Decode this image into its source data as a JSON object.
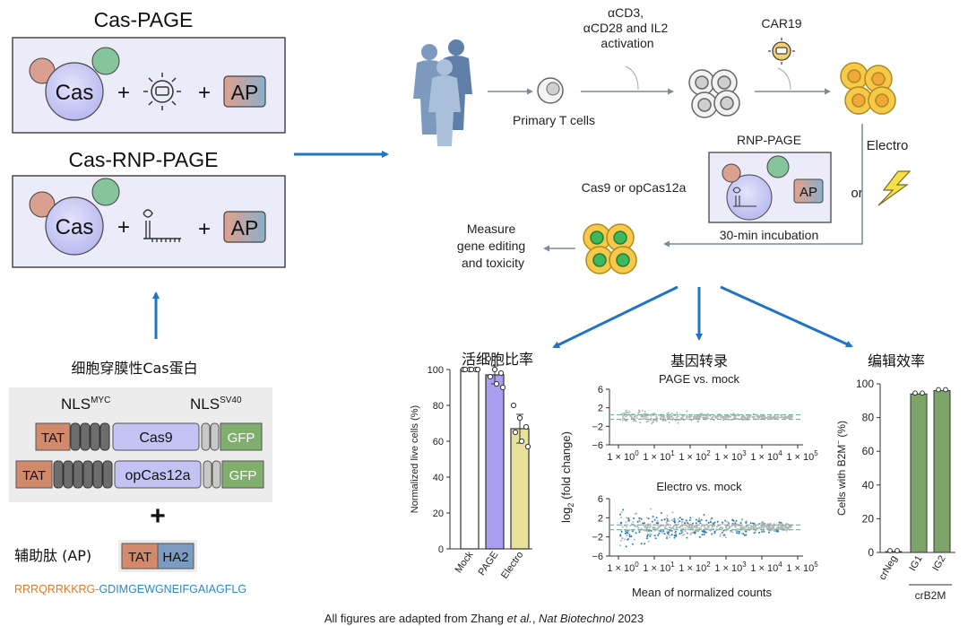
{
  "colors": {
    "box_fill": "#ecebfa",
    "box_stroke": "#4a4a4a",
    "cas_fill": "#c3c4f3",
    "blue_arrow": "#1f74c4",
    "tat_fill": "#d18a6c",
    "ha2_fill": "#7b9cc0",
    "gfp_fill": "#7fae6d",
    "nls_fill": "#6d6d6d",
    "ap_gradient": [
      "#e1a08a",
      "#8bb0cb"
    ],
    "cell_yellow": "#f6c94b",
    "cell_green": "#3db85a",
    "bar_page": "#a99ef0",
    "bar_electro": "#e8e19b",
    "bar_b2m": "#7da56a",
    "ma_blue": "#2a7ab8",
    "ma_grey": "#b4b4b4",
    "rrr_seq": "#d77b2e",
    "ha2_seq": "#2e86c9"
  },
  "left": {
    "cas_page_title": "Cas-PAGE",
    "cas_rnp_page_title": "Cas-RNP-PAGE",
    "cas_label": "Cas",
    "ap_label": "AP",
    "plus": "+",
    "cn_title": "细胞穿膜性Cas蛋白",
    "nls_myc": "NLS",
    "nls_myc_sup": "MYC",
    "nls_sv40": "NLS",
    "nls_sv40_sup": "SV40",
    "tat": "TAT",
    "cas9": "Cas9",
    "opcas12a": "opCas12a",
    "gfp": "GFP",
    "big_plus": "+",
    "ap_cn": "辅助肽 (AP)",
    "ha2": "HA2",
    "seq_rrr": "RRRQRRKKRG-",
    "seq_ha2": "GDIMGEWGNEIFGAIAGFLG"
  },
  "workflow": {
    "activation": [
      "αCD3,",
      "αCD28 and IL2",
      "activation"
    ],
    "car19": "CAR19",
    "primary_t": "Primary T cells",
    "rnp_page": "RNP-PAGE",
    "electro": "Electro",
    "or": "or",
    "cas9_or": "Cas9 or opCas12a",
    "incubation": "30-min incubation",
    "measure": [
      "Measure",
      "gene editing",
      "and toxicity"
    ]
  },
  "panels": {
    "viability_cn": "活细胞比率",
    "transcriptome_cn": "基因转录",
    "editing_cn": "编辑效率",
    "page_vs_mock": "PAGE vs. mock",
    "electro_vs_mock": "Electro vs. mock",
    "ma_ylabel_pre": "log",
    "ma_ylabel_sub": "2",
    "ma_ylabel_post": " (fold change)",
    "ma_xlabel": "Mean of normalized counts",
    "crb2m": "crB2M"
  },
  "chart_data": [
    {
      "type": "bar",
      "title": "活细胞比率",
      "ylabel": "Normalized live cells (%)",
      "ylim": [
        0,
        100
      ],
      "yticks": [
        "0",
        "20",
        "40",
        "60",
        "80",
        "100"
      ],
      "categories": [
        "Mock",
        "PAGE",
        "Electro"
      ],
      "values": [
        100,
        97,
        67
      ],
      "errors": [
        0,
        5,
        8
      ],
      "points": [
        [
          100,
          100,
          100,
          100,
          100,
          100
        ],
        [
          106,
          100,
          98,
          96,
          92,
          90
        ],
        [
          80,
          73,
          68,
          65,
          60,
          57
        ]
      ]
    },
    {
      "type": "scatter",
      "title": "PAGE vs. mock",
      "x_scale": "log",
      "xticks": [
        "1",
        "10",
        "100",
        "1000",
        "10000",
        "100000"
      ],
      "xtick_mantissa": "1 × 10",
      "xtick_exponents": [
        "0",
        "1",
        "2",
        "3",
        "4",
        "5"
      ],
      "ylim": [
        -6,
        6
      ],
      "yticks": [
        "6",
        "2",
        "−2",
        "−6"
      ],
      "highlighted_points": "none"
    },
    {
      "type": "scatter",
      "title": "Electro vs. mock",
      "x_scale": "log",
      "xticks": [
        "1",
        "10",
        "100",
        "1000",
        "10000",
        "100000"
      ],
      "xtick_mantissa": "1 × 10",
      "xtick_exponents": [
        "0",
        "1",
        "2",
        "3",
        "4",
        "5"
      ],
      "ylim": [
        -6,
        6
      ],
      "yticks": [
        "6",
        "2",
        "−2",
        "−6"
      ],
      "xlabel": "Mean of normalized counts",
      "highlighted_points": "blue"
    },
    {
      "type": "bar",
      "title": "编辑效率",
      "ylabel_pre": "Cells with B2M",
      "ylabel_sup": "−",
      "ylabel_post": " (%)",
      "ylim": [
        0,
        100
      ],
      "yticks": [
        "0",
        "20",
        "40",
        "60",
        "80",
        "100"
      ],
      "categories": [
        "crNeg",
        "IG1",
        "IG2"
      ],
      "group_label": "crB2M",
      "values": [
        0.5,
        94,
        96
      ],
      "points": [
        [
          0.5,
          0.5
        ],
        [
          94,
          94
        ],
        [
          96,
          96
        ]
      ]
    }
  ],
  "footer": {
    "pre": "All figures are adapted from Zhang ",
    "etal": "et al.",
    "mid": ", ",
    "journal": "Nat Biotechnol",
    "post": " 2023"
  }
}
